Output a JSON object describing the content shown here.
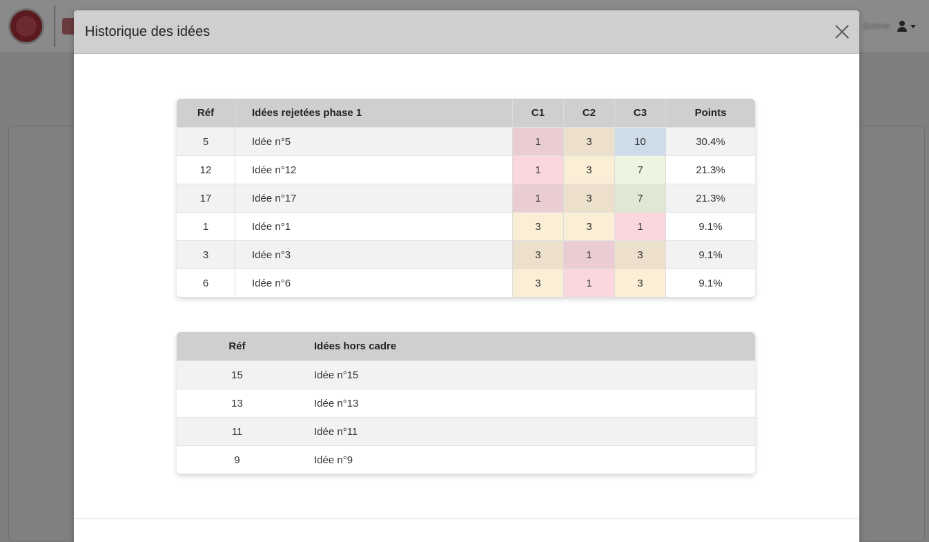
{
  "modal": {
    "title": "Historique des idées"
  },
  "background": {
    "user_label": "Sixtine"
  },
  "rejected_table": {
    "headers": {
      "ref": "Réf",
      "idea": "Idées rejetées phase 1",
      "c1": "C1",
      "c2": "C2",
      "c3": "C3",
      "points": "Points"
    },
    "rows": [
      {
        "ref": "5",
        "idea": "Idée n°5",
        "c1": "1",
        "c2": "3",
        "c3": "10",
        "points": "30.4%"
      },
      {
        "ref": "12",
        "idea": "Idée n°12",
        "c1": "1",
        "c2": "3",
        "c3": "7",
        "points": "21.3%"
      },
      {
        "ref": "17",
        "idea": "Idée n°17",
        "c1": "1",
        "c2": "3",
        "c3": "7",
        "points": "21.3%"
      },
      {
        "ref": "1",
        "idea": "Idée n°1",
        "c1": "3",
        "c2": "3",
        "c3": "1",
        "points": "9.1%"
      },
      {
        "ref": "3",
        "idea": "Idée n°3",
        "c1": "3",
        "c2": "1",
        "c3": "3",
        "points": "9.1%"
      },
      {
        "ref": "6",
        "idea": "Idée n°6",
        "c1": "3",
        "c2": "1",
        "c3": "3",
        "points": "9.1%"
      }
    ],
    "score_colors": {
      "1": {
        "odd": "#eacdd2",
        "even": "#f9d7dc"
      },
      "3": {
        "odd": "#ece0cc",
        "even": "#fbeed6"
      },
      "7": {
        "odd": "#e0e8d4",
        "even": "#edf5e1"
      },
      "10": {
        "odd": "#cedbe8",
        "even": "#dbe7f4"
      }
    }
  },
  "offframe_table": {
    "headers": {
      "ref": "Réf",
      "idea": "Idées hors cadre"
    },
    "rows": [
      {
        "ref": "15",
        "idea": "Idée n°15"
      },
      {
        "ref": "13",
        "idea": "Idée n°13"
      },
      {
        "ref": "11",
        "idea": "Idée n°11"
      },
      {
        "ref": "9",
        "idea": "Idée n°9"
      }
    ]
  }
}
